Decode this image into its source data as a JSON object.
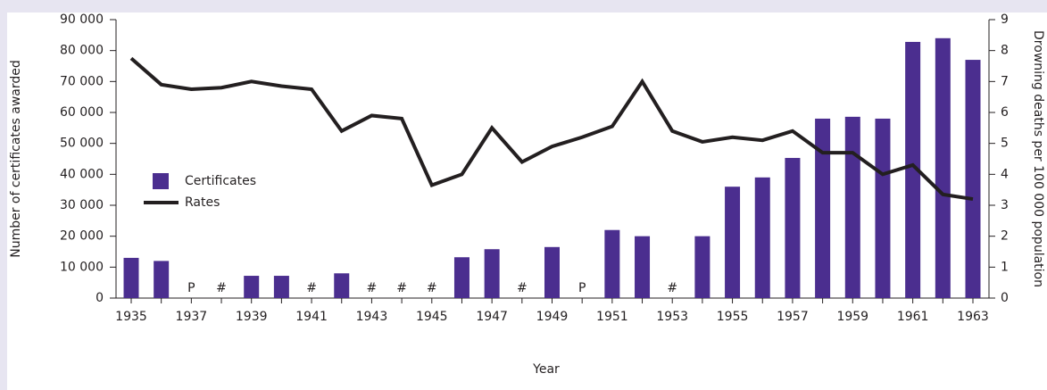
{
  "chart_data": {
    "type": "bar",
    "categories": [
      "1935",
      null,
      "1937",
      null,
      "1939",
      null,
      "1941",
      null,
      "1943",
      null,
      "1945",
      null,
      "1947",
      null,
      "1949",
      null,
      "1951",
      null,
      "1953",
      null,
      "1955",
      null,
      "1957",
      null,
      "1959",
      null,
      "1961",
      null,
      "1963"
    ],
    "xlabel": "Year",
    "ylabel": "Number of certificates awarded",
    "y2label": "Drowning deaths per 100 000 population",
    "ylim": [
      0,
      90000
    ],
    "yticks": [
      0,
      {
        "value": 10000,
        "label": "10 000"
      },
      {
        "value": 20000,
        "label": "20 000"
      },
      {
        "value": 30000,
        "label": "30 000"
      },
      {
        "value": 40000,
        "label": "40 000"
      },
      {
        "value": 50000,
        "label": "50 000"
      },
      {
        "value": 60000,
        "label": "60 000"
      },
      {
        "value": 70000,
        "label": "70 000"
      },
      {
        "value": 80000,
        "label": "80 000"
      },
      {
        "value": 90000,
        "label": "90 000"
      }
    ],
    "y2lim": [
      0,
      9
    ],
    "y2ticks": [
      0,
      1,
      2,
      3,
      4,
      5,
      6,
      7,
      8,
      9
    ],
    "series": [
      {
        "name": "Certificates",
        "type": "bar",
        "color": "#4b2e8f",
        "values": [
          13000,
          12000,
          null,
          null,
          7200,
          7200,
          null,
          8000,
          null,
          null,
          null,
          13200,
          15800,
          null,
          16500,
          null,
          22000,
          20000,
          null,
          20000,
          36000,
          39000,
          45300,
          58000,
          58600,
          58000,
          82800,
          84000,
          77000
        ],
        "value_labels": [
          null,
          null,
          "P",
          "#",
          null,
          null,
          "#",
          null,
          "#",
          "#",
          "#",
          null,
          null,
          "#",
          null,
          "P",
          null,
          null,
          "#",
          null,
          null,
          null,
          null,
          null,
          null,
          null,
          null,
          null,
          null
        ]
      },
      {
        "name": "Rates",
        "type": "line",
        "axis": "y2",
        "color": "#231f20",
        "values": [
          7.75,
          6.9,
          6.75,
          6.8,
          7.0,
          6.85,
          6.75,
          5.4,
          5.9,
          5.8,
          3.65,
          4.0,
          5.5,
          4.4,
          4.9,
          5.2,
          5.55,
          7.0,
          5.4,
          5.05,
          5.2,
          5.1,
          5.4,
          4.7,
          4.7,
          4.0,
          4.3,
          3.35,
          3.2
        ]
      }
    ]
  }
}
